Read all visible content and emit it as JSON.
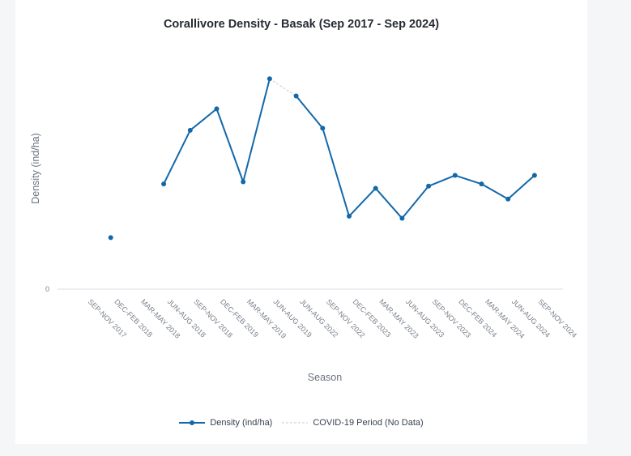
{
  "chart_data": {
    "type": "line",
    "title": "Corallivore Density - Basak (Sep 2017 - Sep 2024)",
    "xlabel": "Season",
    "ylabel": "Density (ind/ha)",
    "categories": [
      "SEP-NOV 2017",
      "DEC-FEB 2018",
      "MAR-MAY 2018",
      "JUN-AUG 2018",
      "SEP-NOV 2018",
      "DEC-FEB 2019",
      "MAR-MAY 2019",
      "JUN-AUG 2019",
      "JUN-AUG 2022",
      "SEP-NOV 2022",
      "DEC-FEB 2023",
      "MAR-MAY 2023",
      "JUN-AUG 2023",
      "SEP-NOV 2023",
      "DEC-FEB 2024",
      "MAR-MAY 2024",
      "JUN-AUG 2024",
      "SEP-NOV 2024"
    ],
    "yticks": [
      0
    ],
    "ylim": [
      0,
      100
    ],
    "series": [
      {
        "name": "Density (ind/ha)",
        "color": "#1368aa",
        "values": [
          null,
          24,
          null,
          49,
          74,
          84,
          50,
          98,
          90,
          75,
          34,
          47,
          33,
          48,
          53,
          49,
          42,
          53
        ]
      },
      {
        "name": "COVID-19 Period (No Data)",
        "color": "#c5ccd6",
        "style": "dashed",
        "from": "JUN-AUG 2019",
        "to": "JUN-AUG 2022"
      }
    ],
    "legend_position": "bottom-center",
    "grid": false
  }
}
